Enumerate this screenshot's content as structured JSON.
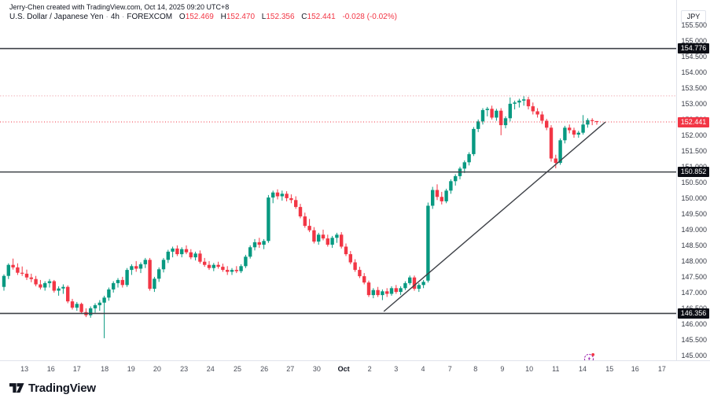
{
  "header": {
    "attribution": "Jerry-Chen created with TradingView.com, Oct 14, 2025 09:20 UTC+8",
    "symbol": {
      "title": "U.S. Dollar / Japanese Yen",
      "interval": "4h",
      "exchange": "FOREXCOM"
    },
    "ohlc": {
      "o_label": "O",
      "o_value": "152.469",
      "h_label": "H",
      "h_value": "152.470",
      "l_label": "L",
      "l_value": "152.356",
      "c_label": "C",
      "c_value": "152.441",
      "change": "-0.028 (-0.02%)"
    }
  },
  "price_axis": {
    "unit": "JPY",
    "ticks": [
      "155.500",
      "155.000",
      "154.500",
      "154.000",
      "153.500",
      "153.000",
      "152.500",
      "152.000",
      "151.500",
      "151.000",
      "150.500",
      "150.000",
      "149.500",
      "149.000",
      "148.500",
      "148.000",
      "147.500",
      "147.000",
      "146.500",
      "146.000",
      "145.500",
      "145.000"
    ],
    "badges": [
      {
        "text": "154.776",
        "price": 154.776,
        "kind": "level"
      },
      {
        "text": "152.441",
        "price": 152.441,
        "kind": "last"
      },
      {
        "text": "150.852",
        "price": 150.852,
        "kind": "level"
      },
      {
        "text": "146.356",
        "price": 146.356,
        "kind": "level"
      }
    ]
  },
  "time_axis": {
    "labels": [
      {
        "text": "13",
        "i": 4.5
      },
      {
        "text": "16",
        "i": 10.3
      },
      {
        "text": "17",
        "i": 16.0
      },
      {
        "text": "18",
        "i": 22.1
      },
      {
        "text": "19",
        "i": 27.9
      },
      {
        "text": "20",
        "i": 33.6
      },
      {
        "text": "23",
        "i": 39.5
      },
      {
        "text": "24",
        "i": 45.3
      },
      {
        "text": "25",
        "i": 51.2
      },
      {
        "text": "26",
        "i": 57.1
      },
      {
        "text": "27",
        "i": 62.8
      },
      {
        "text": "30",
        "i": 68.6
      },
      {
        "text": "Oct",
        "i": 74.5,
        "month": true
      },
      {
        "text": "2",
        "i": 80.2
      },
      {
        "text": "3",
        "i": 86.0
      },
      {
        "text": "4",
        "i": 91.9
      },
      {
        "text": "7",
        "i": 97.8
      },
      {
        "text": "8",
        "i": 103.4
      },
      {
        "text": "9",
        "i": 109.3
      },
      {
        "text": "10",
        "i": 115.2
      },
      {
        "text": "11",
        "i": 121.0
      },
      {
        "text": "14",
        "i": 126.9
      },
      {
        "text": "15",
        "i": 132.8
      },
      {
        "text": "16",
        "i": 138.4
      },
      {
        "text": "17",
        "i": 144.3
      }
    ]
  },
  "footer": {
    "logo_text": "TradingView"
  },
  "colors": {
    "up": "#089981",
    "down": "#F23645",
    "last_price": "#F23645",
    "drawn_line": "#3f4248",
    "badge_dark": "#0c0e15",
    "faint_dotted": "#efb3b9",
    "axis_border": "#e0e3eb"
  },
  "chart_data": {
    "type": "candlestick",
    "title": "U.S. Dollar / Japanese Yen",
    "interval": "4h",
    "exchange": "FOREXCOM",
    "unit": "JPY",
    "ylim": [
      144.95,
      155.55
    ],
    "grid": false,
    "last_close": 152.441,
    "horizontal_levels": [
      154.776,
      150.852,
      146.356
    ],
    "last_price_level": 152.441,
    "faint_dotted_level": 153.27,
    "trendline": {
      "i1": 83.3,
      "price1": 146.42,
      "i2": 131.9,
      "price2": 152.44
    },
    "candles_format": [
      "open",
      "high",
      "low",
      "close"
    ],
    "candles": [
      [
        147.2,
        147.6,
        147.08,
        147.55
      ],
      [
        147.55,
        147.95,
        147.45,
        147.9
      ],
      [
        147.9,
        148.1,
        147.75,
        147.82
      ],
      [
        147.82,
        147.95,
        147.58,
        147.65
      ],
      [
        147.65,
        147.85,
        147.55,
        147.62
      ],
      [
        147.62,
        147.75,
        147.42,
        147.5
      ],
      [
        147.5,
        147.62,
        147.35,
        147.45
      ],
      [
        147.45,
        147.55,
        147.22,
        147.28
      ],
      [
        147.28,
        147.42,
        147.12,
        147.18
      ],
      [
        147.18,
        147.38,
        147.08,
        147.32
      ],
      [
        147.32,
        147.45,
        147.18,
        147.38
      ],
      [
        147.38,
        147.42,
        147.02,
        147.08
      ],
      [
        147.08,
        147.22,
        146.92,
        147.15
      ],
      [
        147.15,
        147.28,
        146.98,
        147.2
      ],
      [
        147.2,
        147.25,
        146.68,
        146.74
      ],
      [
        146.74,
        146.82,
        146.48,
        146.54
      ],
      [
        146.54,
        146.72,
        146.44,
        146.66
      ],
      [
        146.66,
        146.7,
        146.34,
        146.4
      ],
      [
        146.4,
        146.52,
        146.24,
        146.3
      ],
      [
        146.3,
        146.58,
        146.22,
        146.52
      ],
      [
        146.52,
        146.68,
        146.38,
        146.62
      ],
      [
        146.62,
        146.78,
        146.44,
        146.7
      ],
      [
        146.7,
        146.92,
        145.57,
        146.86
      ],
      [
        146.86,
        147.18,
        146.76,
        147.12
      ],
      [
        147.12,
        147.38,
        147.02,
        147.32
      ],
      [
        147.32,
        147.48,
        147.18,
        147.42
      ],
      [
        147.42,
        147.52,
        147.18,
        147.26
      ],
      [
        147.26,
        147.8,
        147.2,
        147.74
      ],
      [
        147.74,
        147.92,
        147.58,
        147.86
      ],
      [
        147.86,
        148.02,
        147.68,
        147.78
      ],
      [
        147.78,
        147.98,
        147.64,
        147.92
      ],
      [
        147.92,
        148.12,
        147.8,
        148.06
      ],
      [
        148.06,
        148.12,
        147.08,
        147.14
      ],
      [
        147.14,
        147.52,
        147.04,
        147.46
      ],
      [
        147.46,
        147.82,
        147.36,
        147.76
      ],
      [
        147.76,
        148.12,
        147.66,
        148.06
      ],
      [
        148.06,
        148.38,
        147.96,
        148.32
      ],
      [
        148.32,
        148.48,
        148.14,
        148.42
      ],
      [
        148.42,
        148.52,
        148.18,
        148.24
      ],
      [
        148.24,
        148.46,
        148.14,
        148.4
      ],
      [
        148.4,
        148.52,
        148.24,
        148.3
      ],
      [
        148.3,
        148.4,
        148.08,
        148.14
      ],
      [
        148.14,
        148.32,
        148.04,
        148.26
      ],
      [
        148.26,
        148.36,
        147.94,
        148.0
      ],
      [
        148.0,
        148.12,
        147.84,
        147.9
      ],
      [
        147.9,
        148.02,
        147.74,
        147.8
      ],
      [
        147.8,
        147.96,
        147.7,
        147.9
      ],
      [
        147.9,
        148.0,
        147.78,
        147.84
      ],
      [
        147.84,
        147.94,
        147.68,
        147.74
      ],
      [
        147.74,
        147.86,
        147.58,
        147.68
      ],
      [
        147.68,
        147.8,
        147.58,
        147.74
      ],
      [
        147.74,
        147.86,
        147.64,
        147.7
      ],
      [
        147.7,
        147.92,
        147.64,
        147.86
      ],
      [
        147.86,
        148.22,
        147.8,
        148.16
      ],
      [
        148.16,
        148.52,
        148.1,
        148.46
      ],
      [
        148.46,
        148.72,
        148.36,
        148.62
      ],
      [
        148.62,
        148.76,
        148.44,
        148.54
      ],
      [
        148.54,
        148.72,
        148.4,
        148.66
      ],
      [
        148.66,
        150.12,
        148.6,
        150.04
      ],
      [
        150.04,
        150.26,
        149.86,
        150.2
      ],
      [
        150.2,
        150.3,
        149.98,
        150.08
      ],
      [
        150.08,
        150.26,
        149.94,
        150.16
      ],
      [
        150.16,
        150.24,
        149.92,
        150.02
      ],
      [
        150.02,
        150.14,
        149.86,
        149.96
      ],
      [
        149.96,
        150.08,
        149.68,
        149.74
      ],
      [
        149.74,
        149.84,
        149.38,
        149.44
      ],
      [
        149.44,
        149.56,
        149.08,
        149.14
      ],
      [
        149.14,
        149.36,
        148.94,
        149.0
      ],
      [
        149.0,
        149.1,
        148.58,
        148.64
      ],
      [
        148.64,
        148.92,
        148.54,
        148.86
      ],
      [
        148.86,
        149.02,
        148.68,
        148.74
      ],
      [
        148.74,
        148.86,
        148.48,
        148.54
      ],
      [
        148.54,
        148.82,
        148.44,
        148.76
      ],
      [
        148.76,
        148.92,
        148.6,
        148.86
      ],
      [
        148.86,
        148.94,
        148.42,
        148.48
      ],
      [
        148.48,
        148.58,
        148.18,
        148.24
      ],
      [
        148.24,
        148.34,
        147.92,
        147.98
      ],
      [
        147.98,
        148.08,
        147.68,
        147.74
      ],
      [
        147.74,
        147.84,
        147.48,
        147.54
      ],
      [
        147.54,
        147.64,
        147.28,
        147.34
      ],
      [
        147.34,
        147.4,
        146.88,
        146.94
      ],
      [
        146.94,
        147.16,
        146.84,
        147.1
      ],
      [
        147.1,
        147.2,
        146.88,
        146.94
      ],
      [
        146.94,
        147.12,
        146.78,
        147.06
      ],
      [
        147.06,
        147.16,
        146.88,
        146.98
      ],
      [
        146.98,
        147.22,
        146.92,
        147.16
      ],
      [
        147.16,
        147.26,
        146.98,
        147.04
      ],
      [
        147.04,
        147.22,
        146.94,
        147.16
      ],
      [
        147.16,
        147.38,
        147.1,
        147.32
      ],
      [
        147.32,
        147.56,
        147.26,
        147.5
      ],
      [
        147.5,
        147.56,
        147.08,
        147.14
      ],
      [
        147.14,
        147.32,
        147.04,
        147.26
      ],
      [
        147.26,
        147.42,
        147.16,
        147.36
      ],
      [
        147.4,
        149.88,
        147.34,
        149.78
      ],
      [
        149.78,
        150.38,
        149.68,
        150.28
      ],
      [
        150.28,
        150.46,
        149.96,
        150.06
      ],
      [
        150.06,
        150.22,
        149.82,
        149.92
      ],
      [
        149.92,
        150.32,
        149.86,
        150.26
      ],
      [
        150.26,
        150.62,
        150.16,
        150.56
      ],
      [
        150.56,
        150.78,
        150.42,
        150.72
      ],
      [
        150.72,
        151.02,
        150.62,
        150.96
      ],
      [
        150.96,
        151.22,
        150.82,
        151.16
      ],
      [
        151.16,
        151.48,
        151.06,
        151.42
      ],
      [
        151.42,
        152.28,
        151.36,
        152.22
      ],
      [
        152.22,
        152.52,
        152.12,
        152.46
      ],
      [
        152.46,
        152.88,
        152.36,
        152.82
      ],
      [
        152.82,
        152.92,
        152.62,
        152.86
      ],
      [
        152.86,
        152.96,
        152.52,
        152.58
      ],
      [
        152.58,
        152.86,
        152.48,
        152.8
      ],
      [
        152.8,
        152.88,
        152.02,
        152.34
      ],
      [
        152.34,
        152.62,
        152.24,
        152.56
      ],
      [
        152.56,
        153.22,
        152.46,
        153.02
      ],
      [
        153.02,
        153.12,
        152.84,
        153.06
      ],
      [
        153.06,
        153.18,
        152.9,
        153.12
      ],
      [
        153.12,
        153.26,
        152.96,
        153.16
      ],
      [
        153.16,
        153.24,
        152.84,
        152.94
      ],
      [
        152.94,
        153.06,
        152.68,
        152.78
      ],
      [
        152.78,
        152.88,
        152.58,
        152.68
      ],
      [
        152.68,
        152.78,
        152.38,
        152.48
      ],
      [
        152.48,
        152.54,
        152.18,
        152.26
      ],
      [
        152.26,
        152.34,
        151.18,
        151.28
      ],
      [
        151.28,
        151.4,
        150.97,
        151.14
      ],
      [
        151.14,
        151.92,
        151.08,
        151.86
      ],
      [
        151.86,
        152.32,
        151.76,
        152.26
      ],
      [
        152.26,
        152.36,
        152.08,
        152.18
      ],
      [
        152.18,
        152.26,
        151.94,
        152.04
      ],
      [
        152.04,
        152.16,
        151.94,
        152.1
      ],
      [
        152.1,
        152.66,
        152.04,
        152.36
      ],
      [
        152.36,
        152.56,
        152.26,
        152.5
      ],
      [
        152.5,
        152.56,
        152.34,
        152.47
      ],
      [
        152.469,
        152.47,
        152.356,
        152.441
      ]
    ]
  }
}
